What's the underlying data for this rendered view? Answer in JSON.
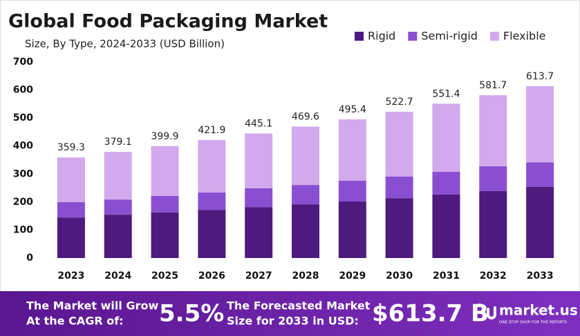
{
  "chart_data": {
    "type": "bar",
    "stacked": true,
    "title": "Global Food Packaging Market",
    "subtitle": "Size, By Type, 2024-2033 (USD Billion)",
    "categories": [
      "2023",
      "2024",
      "2025",
      "2026",
      "2027",
      "2028",
      "2029",
      "2030",
      "2031",
      "2032",
      "2033"
    ],
    "series": [
      {
        "name": "Rigid",
        "color": "#4e1a7f",
        "values": [
          145,
          155,
          163,
          172,
          182,
          192,
          202,
          214,
          227,
          239,
          254
        ]
      },
      {
        "name": "Semi-rigid",
        "color": "#8a4fd1",
        "values": [
          55,
          54,
          59,
          62,
          67,
          69,
          74,
          77,
          81,
          89,
          88
        ]
      },
      {
        "name": "Flexible",
        "color": "#d2a9ec",
        "values": [
          159.3,
          170.1,
          177.9,
          187.9,
          196.1,
          208.6,
          219.4,
          231.7,
          243.4,
          253.7,
          271.7
        ]
      }
    ],
    "totals": [
      359.3,
      379.1,
      399.9,
      421.9,
      445.1,
      469.6,
      495.4,
      522.7,
      551.4,
      581.7,
      613.7
    ],
    "ylim": [
      0,
      700
    ],
    "yticks": [
      0,
      100,
      200,
      300,
      400,
      500,
      600,
      700
    ],
    "grid": false,
    "legend": "top-right"
  },
  "footer": {
    "cagr_text": [
      "The Market will Grow",
      "At the CAGR of:"
    ],
    "cagr": "5.5%",
    "forecast_text": [
      "The Forecasted Market",
      "Size for 2033 in USD:"
    ],
    "forecast": "$613.7 B",
    "brand": "market.us",
    "tagline": "ONE STOP SHOP FOR THE REPORTS"
  }
}
